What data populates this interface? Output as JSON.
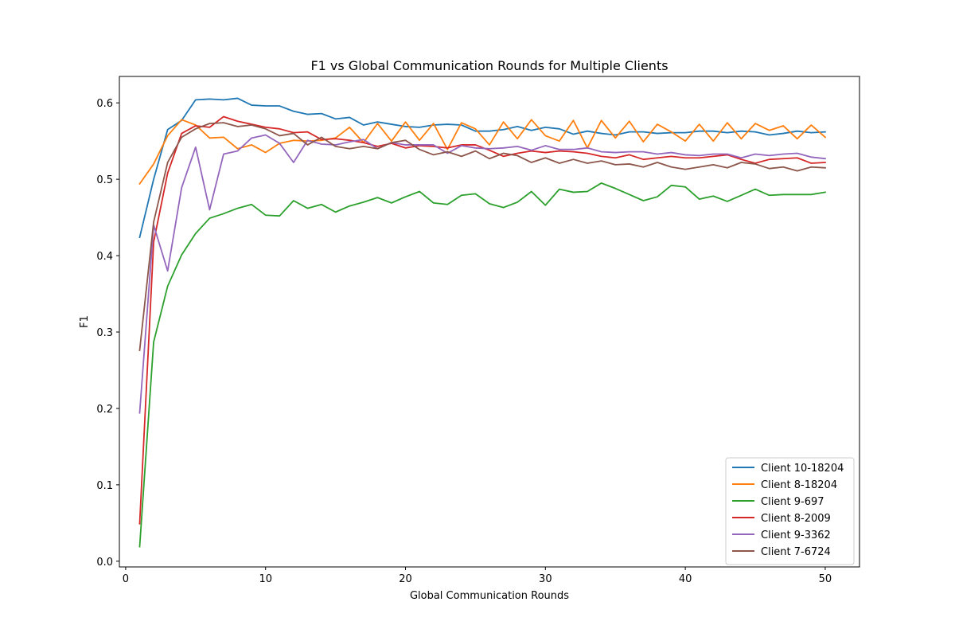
{
  "chart_data": {
    "type": "line",
    "title": "F1 vs Global Communication Rounds for Multiple Clients",
    "xlabel": "Global Communication Rounds",
    "ylabel": "F1",
    "xlim": [
      -0.45,
      52.45
    ],
    "ylim": [
      -0.0075,
      0.6346
    ],
    "xticks": [
      0,
      10,
      20,
      30,
      40,
      50
    ],
    "yticks": [
      0.0,
      0.1,
      0.2,
      0.3,
      0.4,
      0.5,
      0.6
    ],
    "xtick_labels": [
      "0",
      "10",
      "20",
      "30",
      "40",
      "50"
    ],
    "ytick_labels": [
      "0.0",
      "0.1",
      "0.2",
      "0.3",
      "0.4",
      "0.5",
      "0.6"
    ],
    "grid": false,
    "legend_position": "lower-right",
    "x": [
      1,
      2,
      3,
      4,
      5,
      6,
      7,
      8,
      9,
      10,
      11,
      12,
      13,
      14,
      15,
      16,
      17,
      18,
      19,
      20,
      21,
      22,
      23,
      24,
      25,
      26,
      27,
      28,
      29,
      30,
      31,
      32,
      33,
      34,
      35,
      36,
      37,
      38,
      39,
      40,
      41,
      42,
      43,
      44,
      45,
      46,
      47,
      48,
      49,
      50
    ],
    "series": [
      {
        "name": "Client 10-18204",
        "color": "#1f77b4",
        "values": [
          0.424,
          0.5,
          0.565,
          0.577,
          0.604,
          0.605,
          0.604,
          0.606,
          0.597,
          0.596,
          0.596,
          0.589,
          0.585,
          0.586,
          0.579,
          0.581,
          0.571,
          0.575,
          0.572,
          0.569,
          0.568,
          0.571,
          0.572,
          0.571,
          0.563,
          0.563,
          0.565,
          0.569,
          0.564,
          0.568,
          0.566,
          0.559,
          0.563,
          0.56,
          0.558,
          0.562,
          0.562,
          0.56,
          0.561,
          0.561,
          0.563,
          0.563,
          0.561,
          0.563,
          0.562,
          0.558,
          0.56,
          0.563,
          0.561,
          0.562
        ]
      },
      {
        "name": "Client 8-18204",
        "color": "#ff7f0e",
        "values": [
          0.494,
          0.52,
          0.557,
          0.578,
          0.571,
          0.554,
          0.555,
          0.54,
          0.545,
          0.535,
          0.547,
          0.551,
          0.55,
          0.551,
          0.554,
          0.568,
          0.548,
          0.573,
          0.55,
          0.575,
          0.551,
          0.573,
          0.539,
          0.574,
          0.566,
          0.545,
          0.575,
          0.553,
          0.578,
          0.557,
          0.55,
          0.577,
          0.541,
          0.577,
          0.554,
          0.576,
          0.549,
          0.572,
          0.562,
          0.55,
          0.572,
          0.55,
          0.574,
          0.553,
          0.573,
          0.564,
          0.57,
          0.553,
          0.571,
          0.555
        ]
      },
      {
        "name": "Client 9-697",
        "color": "#2ca02c",
        "values": [
          0.019,
          0.287,
          0.36,
          0.401,
          0.429,
          0.449,
          0.455,
          0.462,
          0.467,
          0.453,
          0.452,
          0.472,
          0.462,
          0.467,
          0.457,
          0.465,
          0.47,
          0.476,
          0.469,
          0.477,
          0.484,
          0.469,
          0.467,
          0.479,
          0.481,
          0.468,
          0.463,
          0.47,
          0.484,
          0.466,
          0.487,
          0.483,
          0.484,
          0.495,
          0.488,
          0.48,
          0.472,
          0.477,
          0.492,
          0.49,
          0.474,
          0.478,
          0.471,
          0.479,
          0.487,
          0.479,
          0.48,
          0.48,
          0.48,
          0.483
        ]
      },
      {
        "name": "Client 8-2009",
        "color": "#d62728",
        "values": [
          0.049,
          0.418,
          0.508,
          0.56,
          0.57,
          0.568,
          0.582,
          0.576,
          0.572,
          0.568,
          0.566,
          0.561,
          0.562,
          0.552,
          0.553,
          0.551,
          0.548,
          0.543,
          0.547,
          0.541,
          0.544,
          0.543,
          0.541,
          0.545,
          0.545,
          0.538,
          0.53,
          0.534,
          0.537,
          0.535,
          0.537,
          0.536,
          0.534,
          0.53,
          0.528,
          0.532,
          0.526,
          0.528,
          0.53,
          0.528,
          0.528,
          0.53,
          0.532,
          0.526,
          0.521,
          0.526,
          0.527,
          0.528,
          0.521,
          0.522
        ]
      },
      {
        "name": "Client 9-3362",
        "color": "#9467bd",
        "values": [
          0.194,
          0.44,
          0.38,
          0.489,
          0.542,
          0.46,
          0.533,
          0.537,
          0.554,
          0.558,
          0.547,
          0.522,
          0.551,
          0.546,
          0.545,
          0.549,
          0.552,
          0.54,
          0.548,
          0.545,
          0.545,
          0.545,
          0.534,
          0.544,
          0.541,
          0.54,
          0.541,
          0.543,
          0.538,
          0.544,
          0.539,
          0.539,
          0.541,
          0.536,
          0.535,
          0.536,
          0.536,
          0.533,
          0.535,
          0.532,
          0.531,
          0.533,
          0.533,
          0.528,
          0.533,
          0.531,
          0.533,
          0.534,
          0.529,
          0.527
        ]
      },
      {
        "name": "Client 7-6724",
        "color": "#8c564b",
        "values": [
          0.276,
          0.444,
          0.522,
          0.555,
          0.566,
          0.573,
          0.574,
          0.569,
          0.571,
          0.566,
          0.557,
          0.56,
          0.545,
          0.555,
          0.543,
          0.54,
          0.543,
          0.54,
          0.548,
          0.551,
          0.539,
          0.532,
          0.536,
          0.53,
          0.537,
          0.527,
          0.534,
          0.531,
          0.522,
          0.528,
          0.521,
          0.526,
          0.521,
          0.524,
          0.519,
          0.52,
          0.516,
          0.522,
          0.516,
          0.513,
          0.516,
          0.519,
          0.515,
          0.522,
          0.52,
          0.514,
          0.516,
          0.511,
          0.516,
          0.515
        ]
      }
    ]
  }
}
